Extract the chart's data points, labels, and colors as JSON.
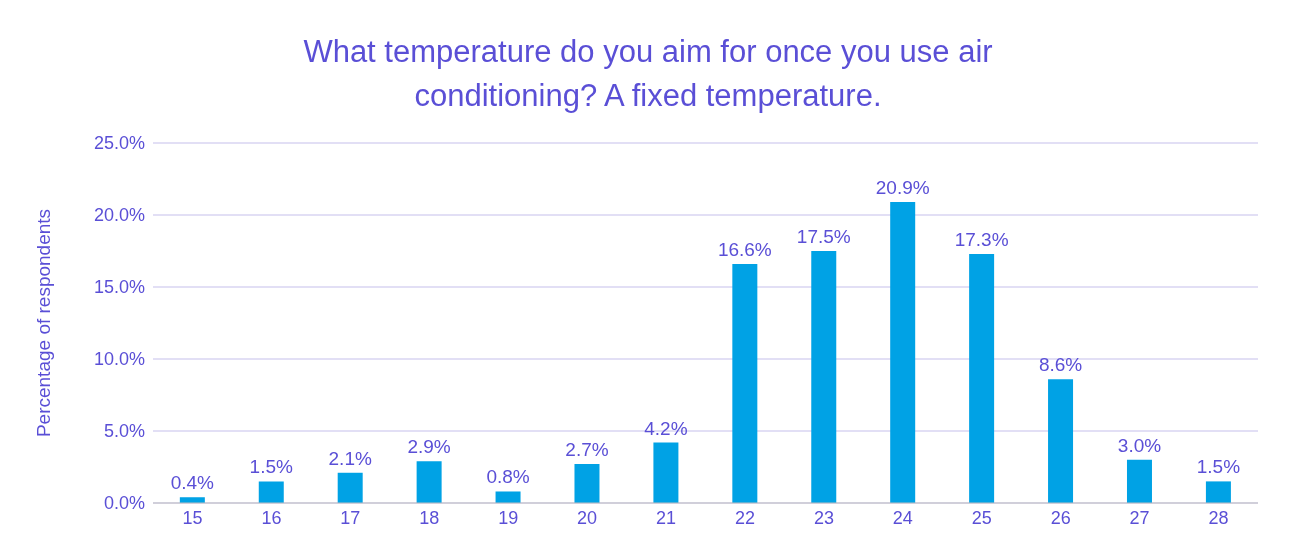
{
  "chart_data": {
    "type": "bar",
    "title": "What temperature do you aim for once you use air conditioning? A fixed temperature.",
    "ylabel": "Percentage of respondents",
    "categories": [
      "15",
      "16",
      "17",
      "18",
      "19",
      "20",
      "21",
      "22",
      "23",
      "24",
      "25",
      "26",
      "27",
      "28"
    ],
    "values": [
      0.4,
      1.5,
      2.1,
      2.9,
      0.8,
      2.7,
      4.2,
      16.6,
      17.5,
      20.9,
      17.3,
      8.6,
      3.0,
      1.5
    ],
    "value_labels": [
      "0.4%",
      "1.5%",
      "2.1%",
      "2.9%",
      "0.8%",
      "2.7%",
      "4.2%",
      "16.6%",
      "17.5%",
      "20.9%",
      "17.3%",
      "8.6%",
      "3.0%",
      "1.5%"
    ],
    "color": "#00a2e5",
    "ylim": [
      0,
      25
    ],
    "yticks": [
      {
        "value": 0,
        "label": "0.0%"
      },
      {
        "value": 5,
        "label": "5.0%"
      },
      {
        "value": 10,
        "label": "10.0%"
      },
      {
        "value": 15,
        "label": "15.0%"
      },
      {
        "value": 20,
        "label": "20.0%"
      },
      {
        "value": 25,
        "label": "25.0%"
      }
    ],
    "grid": "y"
  }
}
